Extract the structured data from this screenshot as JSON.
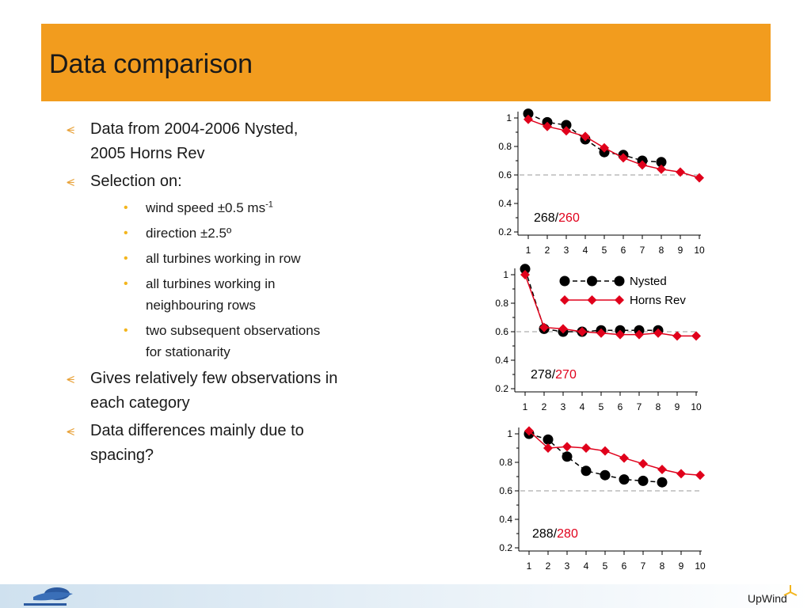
{
  "title": "Data comparison",
  "bullets": {
    "b1_line1": "Data from 2004-2006 Nysted,",
    "b1_line2": "2005 Horns Rev",
    "b2": "Selection on:",
    "sub1_text": "wind speed ±0.5 ms",
    "sub1_sup": "-1",
    "sub2": "direction ±2.5º",
    "sub3": "all turbines working in row",
    "sub4_line1": "all turbines working in",
    "sub4_line2": "neighbouring rows",
    "sub5_line1": "two subsequent observations",
    "sub5_line2": "for stationarity",
    "b3_line1": "Gives relatively few observations in",
    "b3_line2": "each category",
    "b4_line1": "Data differences mainly due to",
    "b4_line2": "spacing?"
  },
  "footer": {
    "brand": "UpWind"
  },
  "colors": {
    "title_bar": "#f29c1e",
    "bullet_mark": "#e8a23a",
    "sub_bullet": "#f3b51d",
    "nysted": "#000000",
    "horns_rev": "#e0001b"
  },
  "icons": {
    "bullet": "wind-turbine-icon",
    "fp6_logo": "fp6-logo",
    "upwind_logo": "upwind-turbine-icon"
  },
  "chart_data": [
    {
      "type": "line",
      "x": [
        1,
        2,
        3,
        4,
        5,
        6,
        7,
        8,
        9,
        10
      ],
      "ylim": [
        0.2,
        1.0
      ],
      "yticks": [
        "0.2",
        "0.4",
        "0.6",
        "0.8",
        "1"
      ],
      "reference_line": 0.6,
      "annotation_black": "268/",
      "annotation_red": "260",
      "series": [
        {
          "name": "Nysted",
          "values": [
            1.03,
            0.97,
            0.95,
            0.85,
            0.76,
            0.74,
            0.7,
            0.69,
            null,
            null
          ]
        },
        {
          "name": "Horns Rev",
          "values": [
            0.99,
            0.94,
            0.91,
            0.87,
            0.79,
            0.72,
            0.67,
            0.64,
            0.62,
            0.58
          ]
        }
      ]
    },
    {
      "type": "line",
      "x": [
        1,
        2,
        3,
        4,
        5,
        6,
        7,
        8,
        9,
        10
      ],
      "ylim": [
        0.2,
        1.0
      ],
      "yticks": [
        "0.2",
        "0.4",
        "0.6",
        "0.8",
        "1"
      ],
      "reference_line": 0.6,
      "annotation_black": "278/",
      "annotation_red": "270",
      "legend": {
        "nysted": "Nysted",
        "horns_rev": "Horns Rev"
      },
      "series": [
        {
          "name": "Nysted",
          "values": [
            1.04,
            0.62,
            0.6,
            0.6,
            0.61,
            0.61,
            0.61,
            0.61,
            null,
            null
          ]
        },
        {
          "name": "Horns Rev",
          "values": [
            1.0,
            0.63,
            0.62,
            0.6,
            0.59,
            0.58,
            0.58,
            0.59,
            0.57,
            0.57
          ]
        }
      ]
    },
    {
      "type": "line",
      "x": [
        1,
        2,
        3,
        4,
        5,
        6,
        7,
        8,
        9,
        10
      ],
      "ylim": [
        0.2,
        1.0
      ],
      "yticks": [
        "0.2",
        "0.4",
        "0.6",
        "0.8",
        "1"
      ],
      "reference_line": 0.6,
      "annotation_black": "288/",
      "annotation_red": "280",
      "series": [
        {
          "name": "Nysted",
          "values": [
            1.0,
            0.96,
            0.84,
            0.74,
            0.71,
            0.68,
            0.67,
            0.66,
            null,
            null
          ]
        },
        {
          "name": "Horns Rev",
          "values": [
            1.02,
            0.9,
            0.91,
            0.9,
            0.88,
            0.83,
            0.79,
            0.75,
            0.72,
            0.71
          ]
        }
      ]
    }
  ]
}
